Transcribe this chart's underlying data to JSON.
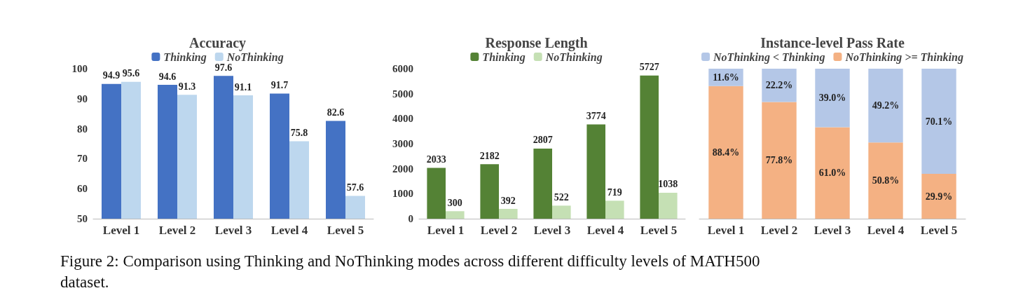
{
  "chart_data": [
    {
      "type": "bar",
      "title": "Accuracy",
      "categories": [
        "Level 1",
        "Level 2",
        "Level 3",
        "Level 4",
        "Level 5"
      ],
      "series": [
        {
          "name": "Thinking",
          "color": "#4472c4",
          "values": [
            94.9,
            94.6,
            97.6,
            91.7,
            82.6
          ]
        },
        {
          "name": "NoThinking",
          "color": "#bdd7ee",
          "values": [
            95.6,
            91.3,
            91.1,
            75.8,
            57.6
          ]
        }
      ],
      "ylim": [
        50,
        100
      ],
      "yticks": [
        50,
        60,
        70,
        80,
        90,
        100
      ],
      "data_labels": true,
      "legend": "top",
      "annotations": [
        "Figure 2: Comparison using Thinking and NoThinking modes across different difficulty levels of MATH500 dataset."
      ]
    },
    {
      "type": "bar",
      "title": "Response Length",
      "categories": [
        "Level 1",
        "Level 2",
        "Level 3",
        "Level 4",
        "Level 5"
      ],
      "series": [
        {
          "name": "Thinking",
          "color": "#548235",
          "values": [
            2033,
            2182,
            2807,
            3774,
            5727
          ]
        },
        {
          "name": "NoThinking",
          "color": "#c5e0b4",
          "values": [
            300,
            392,
            522,
            719,
            1038
          ]
        }
      ],
      "ylim": [
        0,
        6000
      ],
      "yticks": [
        0,
        1000,
        2000,
        3000,
        4000,
        5000,
        6000
      ],
      "data_labels": true,
      "legend": "top"
    },
    {
      "type": "bar",
      "title": "Instance-level Pass Rate",
      "categories": [
        "Level 1",
        "Level 2",
        "Level 3",
        "Level 4",
        "Level 5"
      ],
      "stacked": true,
      "tick_labels": "x",
      "series": [
        {
          "name": "NoThinking >= Thinking",
          "color": "#f4b183",
          "values": [
            88.4,
            77.8,
            61.0,
            50.8,
            29.9
          ],
          "value_labels": [
            "88.4%",
            "77.8%",
            "61.0%",
            "50.8%",
            "29.9%"
          ]
        },
        {
          "name": "NoThinking < Thinking",
          "color": "#b4c7e7",
          "values": [
            11.6,
            22.2,
            39.0,
            49.2,
            70.1
          ],
          "value_labels": [
            "11.6%",
            "22.2%",
            "39.0%",
            "49.2%",
            "70.1%"
          ]
        }
      ],
      "legend": "top"
    }
  ]
}
